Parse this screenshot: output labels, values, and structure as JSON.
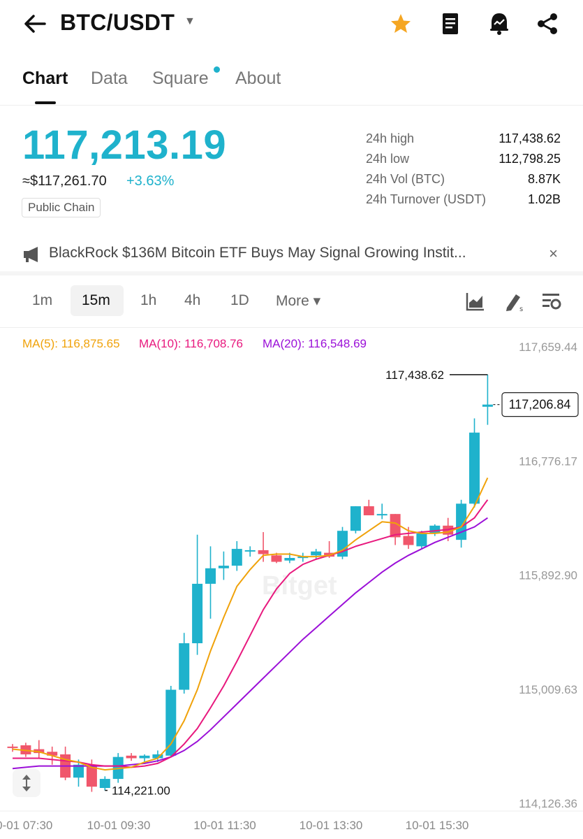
{
  "header": {
    "pair": "BTC/USDT",
    "icons": [
      "back-arrow-icon",
      "chevron-down-icon",
      "star-icon",
      "document-icon",
      "price-alert-bell-icon",
      "share-icon"
    ]
  },
  "tabs": [
    {
      "label": "Chart",
      "active": true
    },
    {
      "label": "Data",
      "active": false
    },
    {
      "label": "Square",
      "active": false
    },
    {
      "label": "About",
      "active": false
    }
  ],
  "ticker": {
    "last_price": "117,213.19",
    "usd_price": "≈$117,261.70",
    "change_pct": "+3.63%",
    "tag": "Public Chain",
    "stats": [
      {
        "label": "24h high",
        "value": "117,438.62"
      },
      {
        "label": "24h low",
        "value": "112,798.25"
      },
      {
        "label": "24h Vol (BTC)",
        "value": "8.87K"
      },
      {
        "label": "24h Turnover (USDT)",
        "value": "1.02B"
      }
    ]
  },
  "news": {
    "text": "BlackRock $136M Bitcoin ETF Buys May Signal Growing Instit...",
    "close": "×"
  },
  "intervals": {
    "options": [
      "1m",
      "15m",
      "1h",
      "4h",
      "1D",
      "More ▾"
    ],
    "selected": "15m"
  },
  "indicators": {
    "ma5": "MA(5): 116,875.65",
    "ma10": "MA(10): 116,708.76",
    "ma20": "MA(20): 116,548.69"
  },
  "colors": {
    "up": "#1fb2cc",
    "down": "#f0566b",
    "ma5": "#f0a20a",
    "ma10": "#e8197e",
    "ma20": "#9b10d8"
  },
  "chart_data": {
    "type": "candlestick",
    "watermark": "Bitget",
    "y_ticks": [
      "117,659.44",
      "116,776.17",
      "115,892.90",
      "115,009.63",
      "114,126.36"
    ],
    "ylim": [
      114126.36,
      117659.44
    ],
    "x_ticks": [
      "10-01 07:30",
      "10-01 09:30",
      "10-01 11:30",
      "10-01 13:30",
      "10-01 15:30"
    ],
    "current_price_label": "117,206.84",
    "high_label": "117,438.62",
    "low_label": "114,221.00",
    "candles": [
      {
        "o": 114560,
        "h": 114580,
        "l": 114520,
        "c": 114550
      },
      {
        "o": 114570,
        "h": 114590,
        "l": 114480,
        "c": 114500
      },
      {
        "o": 114540,
        "h": 114610,
        "l": 114470,
        "c": 114510
      },
      {
        "o": 114520,
        "h": 114560,
        "l": 114420,
        "c": 114490
      },
      {
        "o": 114500,
        "h": 114560,
        "l": 114300,
        "c": 114320
      },
      {
        "o": 114320,
        "h": 114460,
        "l": 114250,
        "c": 114420
      },
      {
        "o": 114420,
        "h": 114460,
        "l": 114210,
        "c": 114250
      },
      {
        "o": 114240,
        "h": 114330,
        "l": 114221,
        "c": 114310
      },
      {
        "o": 114310,
        "h": 114510,
        "l": 114280,
        "c": 114480
      },
      {
        "o": 114490,
        "h": 114510,
        "l": 114450,
        "c": 114470
      },
      {
        "o": 114470,
        "h": 114500,
        "l": 114430,
        "c": 114490
      },
      {
        "o": 114470,
        "h": 114530,
        "l": 114440,
        "c": 114500
      },
      {
        "o": 114490,
        "h": 115030,
        "l": 114480,
        "c": 115000
      },
      {
        "o": 115000,
        "h": 115440,
        "l": 114970,
        "c": 115360
      },
      {
        "o": 115360,
        "h": 116200,
        "l": 115270,
        "c": 115820
      },
      {
        "o": 115820,
        "h": 116110,
        "l": 115550,
        "c": 115940
      },
      {
        "o": 115940,
        "h": 116070,
        "l": 115850,
        "c": 115960
      },
      {
        "o": 115960,
        "h": 116150,
        "l": 115920,
        "c": 116090
      },
      {
        "o": 116080,
        "h": 116110,
        "l": 116030,
        "c": 116080
      },
      {
        "o": 116080,
        "h": 116220,
        "l": 115990,
        "c": 116050
      },
      {
        "o": 116040,
        "h": 116060,
        "l": 115980,
        "c": 115990
      },
      {
        "o": 116000,
        "h": 116060,
        "l": 115980,
        "c": 116020
      },
      {
        "o": 116020,
        "h": 116060,
        "l": 115990,
        "c": 116030
      },
      {
        "o": 116040,
        "h": 116090,
        "l": 116010,
        "c": 116070
      },
      {
        "o": 116060,
        "h": 116150,
        "l": 116020,
        "c": 116030
      },
      {
        "o": 116030,
        "h": 116260,
        "l": 116010,
        "c": 116230
      },
      {
        "o": 116230,
        "h": 116420,
        "l": 116210,
        "c": 116420
      },
      {
        "o": 116420,
        "h": 116470,
        "l": 116350,
        "c": 116350
      },
      {
        "o": 116360,
        "h": 116440,
        "l": 116320,
        "c": 116360
      },
      {
        "o": 116360,
        "h": 116360,
        "l": 116120,
        "c": 116180
      },
      {
        "o": 116190,
        "h": 116260,
        "l": 116090,
        "c": 116120
      },
      {
        "o": 116110,
        "h": 116230,
        "l": 116090,
        "c": 116210
      },
      {
        "o": 116210,
        "h": 116280,
        "l": 116190,
        "c": 116270
      },
      {
        "o": 116270,
        "h": 116330,
        "l": 116150,
        "c": 116200
      },
      {
        "o": 116160,
        "h": 116470,
        "l": 116100,
        "c": 116440
      },
      {
        "o": 116440,
        "h": 117100,
        "l": 116410,
        "c": 116990
      },
      {
        "o": 117190,
        "h": 117438.62,
        "l": 117050,
        "c": 117206.84
      }
    ],
    "ma5": [
      114540,
      114530,
      114520,
      114490,
      114460,
      114440,
      114400,
      114380,
      114390,
      114400,
      114440,
      114470,
      114580,
      114760,
      115000,
      115300,
      115560,
      115800,
      115930,
      116040,
      116050,
      116050,
      116030,
      116030,
      116040,
      116080,
      116160,
      116230,
      116300,
      116290,
      116230,
      116210,
      116210,
      116220,
      116260,
      116420,
      116640
    ],
    "ma10": [
      114470,
      114470,
      114470,
      114460,
      114450,
      114440,
      114420,
      114410,
      114410,
      114400,
      114410,
      114430,
      114480,
      114580,
      114700,
      114860,
      115030,
      115220,
      115420,
      115620,
      115780,
      115900,
      115970,
      116010,
      116040,
      116070,
      116110,
      116140,
      116170,
      116200,
      116210,
      116220,
      116230,
      116240,
      116260,
      116330,
      116470
    ],
    "ma20": [
      114390,
      114400,
      114410,
      114410,
      114410,
      114410,
      114410,
      114410,
      114410,
      114420,
      114430,
      114450,
      114480,
      114530,
      114600,
      114690,
      114790,
      114890,
      114990,
      115090,
      115190,
      115290,
      115390,
      115480,
      115570,
      115660,
      115750,
      115830,
      115910,
      115980,
      116040,
      116090,
      116140,
      116180,
      116220,
      116260,
      116330
    ]
  }
}
